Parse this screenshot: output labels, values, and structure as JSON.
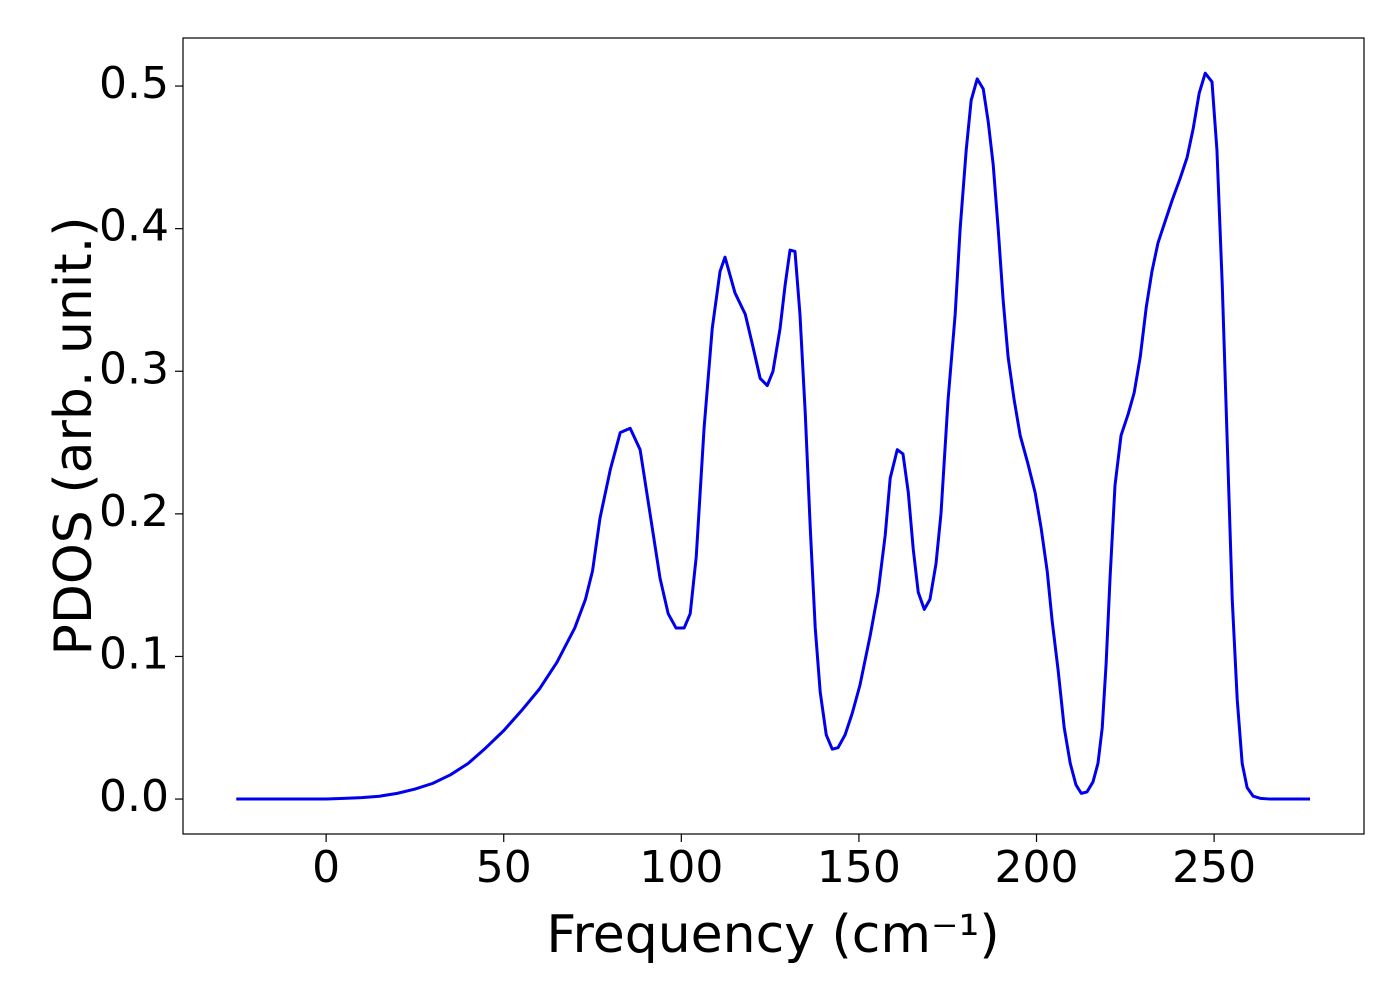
{
  "chart_data": {
    "type": "line",
    "x_label": "Frequency (cm⁻¹)",
    "y_label": "PDOS (arb. unit.)",
    "xlim": [
      -40.3,
      292.2
    ],
    "ylim": [
      -0.0245,
      0.5337
    ],
    "xticks": [
      0,
      50,
      100,
      150,
      200,
      250
    ],
    "yticks": [
      {
        "value": 0,
        "label": "0.0"
      },
      0.1,
      0.2,
      0.3,
      0.4,
      0.5
    ],
    "grid": false,
    "x": [
      -25.3,
      0,
      5,
      10,
      15,
      20,
      25,
      30,
      35,
      40,
      45,
      50,
      55,
      60,
      65,
      70,
      73,
      75,
      77.1,
      80.0,
      82.8,
      85.6,
      88.4,
      91.2,
      94.0,
      96.3,
      98.5,
      100.8,
      102.5,
      104.2,
      106.4,
      108.7,
      110.9,
      112.3,
      115.1,
      118.0,
      119.9,
      122.2,
      124.2,
      125.8,
      127.8,
      129.2,
      130.6,
      132.0,
      133.4,
      134.9,
      136.3,
      137.7,
      139.1,
      140.8,
      142.5,
      144.1,
      146.1,
      148.1,
      150.3,
      153.2,
      155.4,
      157.4,
      158.8,
      160.8,
      162.4,
      163.9,
      165.3,
      166.7,
      168.4,
      170.0,
      171.7,
      173.1,
      175.1,
      177.1,
      178.5,
      180.2,
      181.6,
      183.3,
      185.0,
      186.4,
      187.8,
      189.2,
      190.6,
      192.0,
      193.7,
      195.4,
      197.6,
      199.6,
      201.3,
      203.0,
      204.4,
      206.1,
      207.8,
      209.5,
      211.1,
      212.6,
      214.2,
      215.9,
      217.3,
      218.5,
      219.6,
      220.7,
      222.1,
      223.8,
      225.8,
      227.5,
      229.2,
      230.9,
      232.5,
      234.2,
      236.2,
      238.2,
      240.4,
      242.4,
      244.1,
      245.8,
      247.5,
      249.4,
      250.8,
      252.3,
      253.7,
      255.1,
      256.5,
      257.9,
      259.3,
      261.0,
      263.0,
      265.8,
      277.0
    ],
    "series": [
      {
        "color": "#0000ee",
        "values": [
          0,
          0,
          0.0005,
          0.001,
          0.002,
          0.004,
          0.007,
          0.011,
          0.017,
          0.025,
          0.036,
          0.048,
          0.062,
          0.077,
          0.096,
          0.12,
          0.14,
          0.16,
          0.197,
          0.231,
          0.257,
          0.26,
          0.245,
          0.2,
          0.155,
          0.13,
          0.12,
          0.12,
          0.13,
          0.17,
          0.26,
          0.33,
          0.37,
          0.38,
          0.355,
          0.34,
          0.32,
          0.295,
          0.29,
          0.3,
          0.33,
          0.36,
          0.385,
          0.384,
          0.34,
          0.27,
          0.19,
          0.12,
          0.075,
          0.045,
          0.035,
          0.036,
          0.045,
          0.06,
          0.08,
          0.115,
          0.145,
          0.185,
          0.225,
          0.245,
          0.242,
          0.215,
          0.175,
          0.145,
          0.133,
          0.14,
          0.165,
          0.2,
          0.28,
          0.34,
          0.4,
          0.455,
          0.49,
          0.505,
          0.498,
          0.475,
          0.445,
          0.4,
          0.35,
          0.31,
          0.28,
          0.255,
          0.235,
          0.215,
          0.19,
          0.16,
          0.125,
          0.09,
          0.05,
          0.025,
          0.01,
          0.004,
          0.005,
          0.012,
          0.025,
          0.05,
          0.095,
          0.155,
          0.22,
          0.255,
          0.27,
          0.285,
          0.31,
          0.345,
          0.37,
          0.39,
          0.405,
          0.42,
          0.435,
          0.45,
          0.47,
          0.495,
          0.509,
          0.503,
          0.455,
          0.36,
          0.25,
          0.14,
          0.07,
          0.025,
          0.008,
          0.002,
          0.0005,
          0,
          0
        ]
      }
    ]
  }
}
